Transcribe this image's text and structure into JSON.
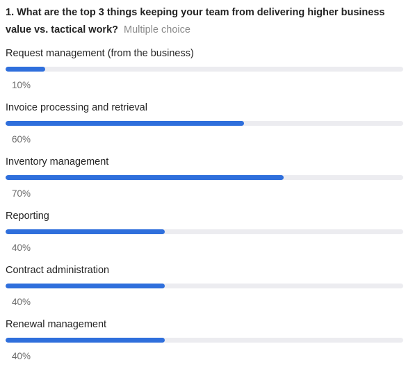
{
  "question": {
    "text": "1. What are the top 3 things keeping your team from delivering higher business value vs. tactical work?",
    "type_label": "Multiple choice"
  },
  "colors": {
    "bar_fill": "#2f6fdc",
    "bar_track": "#ececf0",
    "percent_text": "#6b6b6b"
  },
  "options": [
    {
      "label": "Request management (from the business)",
      "percent": 10,
      "percent_label": "10%"
    },
    {
      "label": "Invoice processing and retrieval",
      "percent": 60,
      "percent_label": "60%"
    },
    {
      "label": "Inventory management",
      "percent": 70,
      "percent_label": "70%"
    },
    {
      "label": "Reporting",
      "percent": 40,
      "percent_label": "40%"
    },
    {
      "label": "Contract administration",
      "percent": 40,
      "percent_label": "40%"
    },
    {
      "label": "Renewal management",
      "percent": 40,
      "percent_label": "40%"
    }
  ]
}
